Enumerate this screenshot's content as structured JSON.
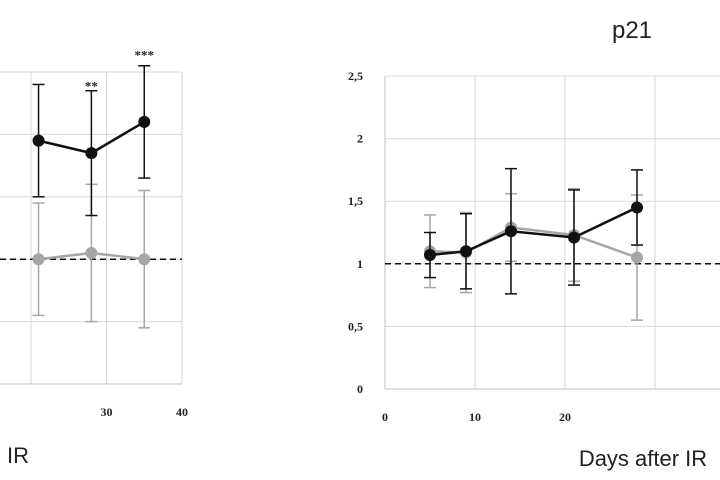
{
  "chart_data": [
    {
      "type": "line",
      "title": "",
      "xlabel": "IR",
      "ylabel": "",
      "xlim": [
        0,
        40
      ],
      "ylim": [
        0,
        2.5
      ],
      "x_ticks": [
        "30",
        "40"
      ],
      "y_ticks": [],
      "grid": true,
      "reference_line": 1,
      "series": [
        {
          "color": "#111111",
          "points": [
            {
              "x": 21,
              "y": 1.95,
              "err": 0.45
            },
            {
              "x": 28,
              "y": 1.85,
              "err": 0.5
            },
            {
              "x": 35,
              "y": 2.1,
              "err": 0.45
            }
          ]
        },
        {
          "color": "#a6a6a6",
          "points": [
            {
              "x": 21,
              "y": 1.0,
              "err": 0.45
            },
            {
              "x": 28,
              "y": 1.05,
              "err": 0.55
            },
            {
              "x": 35,
              "y": 1.0,
              "err": 0.55
            }
          ]
        }
      ],
      "annotations": [
        {
          "x": 28,
          "y": 2.35,
          "text": "**"
        },
        {
          "x": 35,
          "y": 2.6,
          "text": "***"
        }
      ]
    },
    {
      "type": "line",
      "title": "p21",
      "xlabel": "Days after IR",
      "ylabel": "",
      "xlim": [
        0,
        40
      ],
      "ylim": [
        0,
        2.5
      ],
      "x_ticks": [
        "0",
        "10",
        "20"
      ],
      "y_ticks": [
        "0",
        "0,5",
        "1",
        "1,5",
        "2",
        "2,5"
      ],
      "grid": true,
      "reference_line": 1,
      "series": [
        {
          "color": "#111111",
          "points": [
            {
              "x": 5,
              "y": 1.07,
              "err": 0.18
            },
            {
              "x": 9,
              "y": 1.1,
              "err": 0.3
            },
            {
              "x": 14,
              "y": 1.26,
              "err": 0.5
            },
            {
              "x": 21,
              "y": 1.21,
              "err": 0.38
            },
            {
              "x": 28,
              "y": 1.45,
              "err": 0.3
            }
          ]
        },
        {
          "color": "#a6a6a6",
          "points": [
            {
              "x": 5,
              "y": 1.1,
              "err": 0.29
            },
            {
              "x": 9,
              "y": 1.09,
              "err": 0.32
            },
            {
              "x": 14,
              "y": 1.29,
              "err": 0.27
            },
            {
              "x": 21,
              "y": 1.23,
              "err": 0.37
            },
            {
              "x": 28,
              "y": 1.05,
              "err": 0.5
            }
          ]
        }
      ],
      "annotations": []
    }
  ]
}
